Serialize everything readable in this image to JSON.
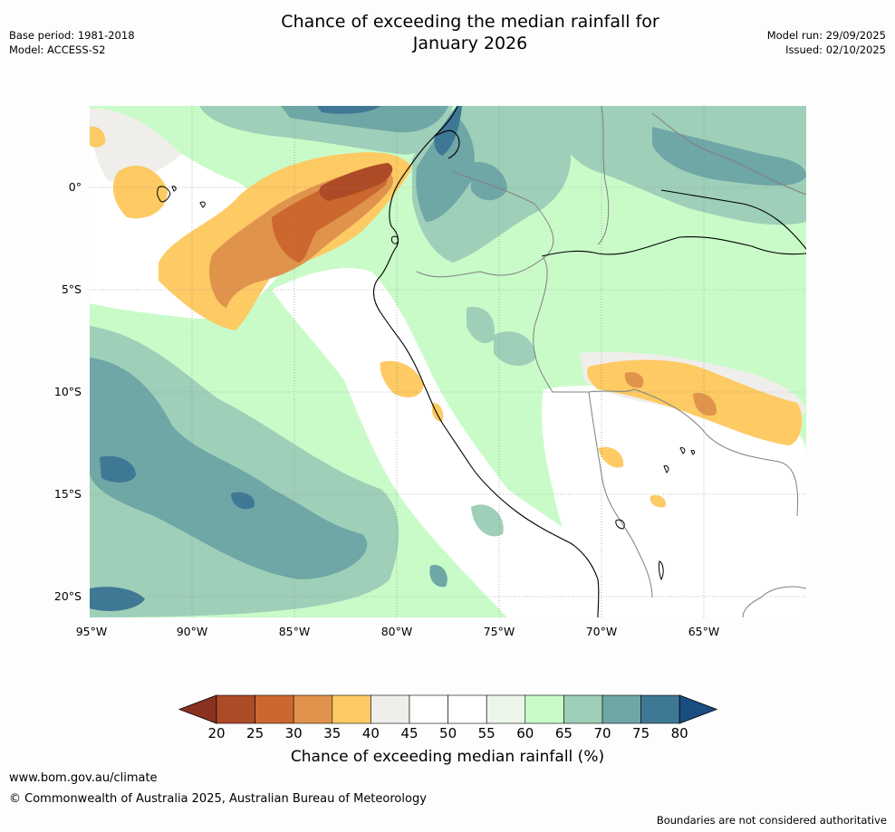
{
  "title": {
    "line1": "Chance of exceeding the median rainfall for",
    "line2": "January 2026"
  },
  "meta_left": {
    "base_period": "Base period: 1981-2018",
    "model": "Model: ACCESS-S2"
  },
  "meta_right": {
    "model_run": "Model run: 29/09/2025",
    "issued": "Issued: 02/10/2025"
  },
  "map": {
    "lat_labels": [
      "0°",
      "5°S",
      "10°S",
      "15°S",
      "20°S"
    ],
    "lon_labels": [
      "95°W",
      "90°W",
      "85°W",
      "80°W",
      "75°W",
      "70°W",
      "65°W"
    ]
  },
  "colorbar": {
    "ticks": [
      "20",
      "25",
      "30",
      "35",
      "40",
      "45",
      "50",
      "55",
      "60",
      "65",
      "70",
      "75",
      "80"
    ],
    "colors": [
      "#ae4b27",
      "#cb672f",
      "#e0944b",
      "#fdca64",
      "#f0eeea",
      "#ffffff",
      "#ffffff",
      "#ebf5ea",
      "#c9fbc9",
      "#9ecfb8",
      "#6fa6a6",
      "#3f7894"
    ],
    "under_color": "#8a3220",
    "over_color": "#1a4d82",
    "title": "Chance of exceeding median rainfall (%)"
  },
  "footer": {
    "website": "www.bom.gov.au/climate",
    "copyright": "© Commonwealth of Australia 2025, Australian Bureau of Meteorology",
    "disclaimer": "Boundaries are not considered authoritative"
  }
}
